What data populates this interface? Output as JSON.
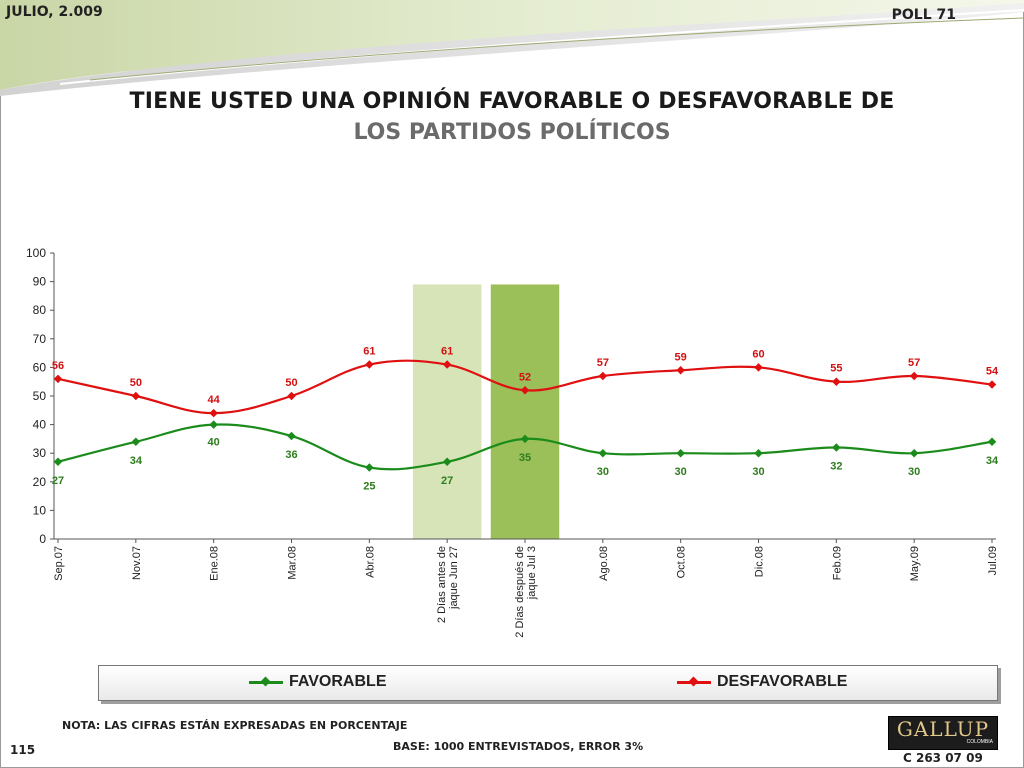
{
  "header": {
    "date": "JULIO, 2.009",
    "poll": "POLL 71",
    "title_line1": "TIENE USTED UNA OPINIÓN FAVORABLE O DESFAVORABLE DE",
    "title_line2": "LOS PARTIDOS POLÍTICOS"
  },
  "footer": {
    "note": "NOTA: LAS CIFRAS ESTÁN EXPRESADAS EN PORCENTAJE",
    "base": "BASE: 1000 ENTREVISTADOS, ERROR 3%",
    "page_number": "115",
    "code": "C 263 07 09",
    "logo_text": "GALLUP",
    "logo_subtext": "COLOMBIA"
  },
  "colors": {
    "favorable": "#1b8c1b",
    "desfavorable": "#e01010",
    "band_light": "#d6e4b8",
    "band_dark": "#9bbf59",
    "label_favorable": "#2e7d1e",
    "label_desfavorable": "#d11111"
  },
  "chart_data": {
    "type": "line",
    "categories": [
      [
        "Sep.07"
      ],
      [
        "Nov.07"
      ],
      [
        "Ene.08"
      ],
      [
        "Mar.08"
      ],
      [
        "Abr.08"
      ],
      [
        "2 Días antes de",
        "jaque Jun 27"
      ],
      [
        "2 Días después de",
        "jaque Jul 3"
      ],
      [
        "Ago.08"
      ],
      [
        "Oct.08"
      ],
      [
        "Dic.08"
      ],
      [
        "Feb.09"
      ],
      [
        "May.09"
      ],
      [
        "Jul.09"
      ]
    ],
    "series": [
      {
        "name": "FAVORABLE",
        "values": [
          27,
          34,
          40,
          36,
          25,
          27,
          35,
          30,
          30,
          30,
          32,
          30,
          34
        ]
      },
      {
        "name": "DESFAVORABLE",
        "values": [
          56,
          50,
          44,
          50,
          61,
          61,
          52,
          57,
          59,
          60,
          55,
          57,
          54
        ]
      }
    ],
    "ylim": [
      0,
      100
    ],
    "yticks": [
      0,
      10,
      20,
      30,
      40,
      50,
      60,
      70,
      80,
      90,
      100
    ],
    "highlight_bands": [
      {
        "category_index": 5,
        "top_value": 89,
        "color": "light"
      },
      {
        "category_index": 6,
        "top_value": 89,
        "color": "dark"
      }
    ],
    "legend_position": "bottom",
    "grid": false
  }
}
